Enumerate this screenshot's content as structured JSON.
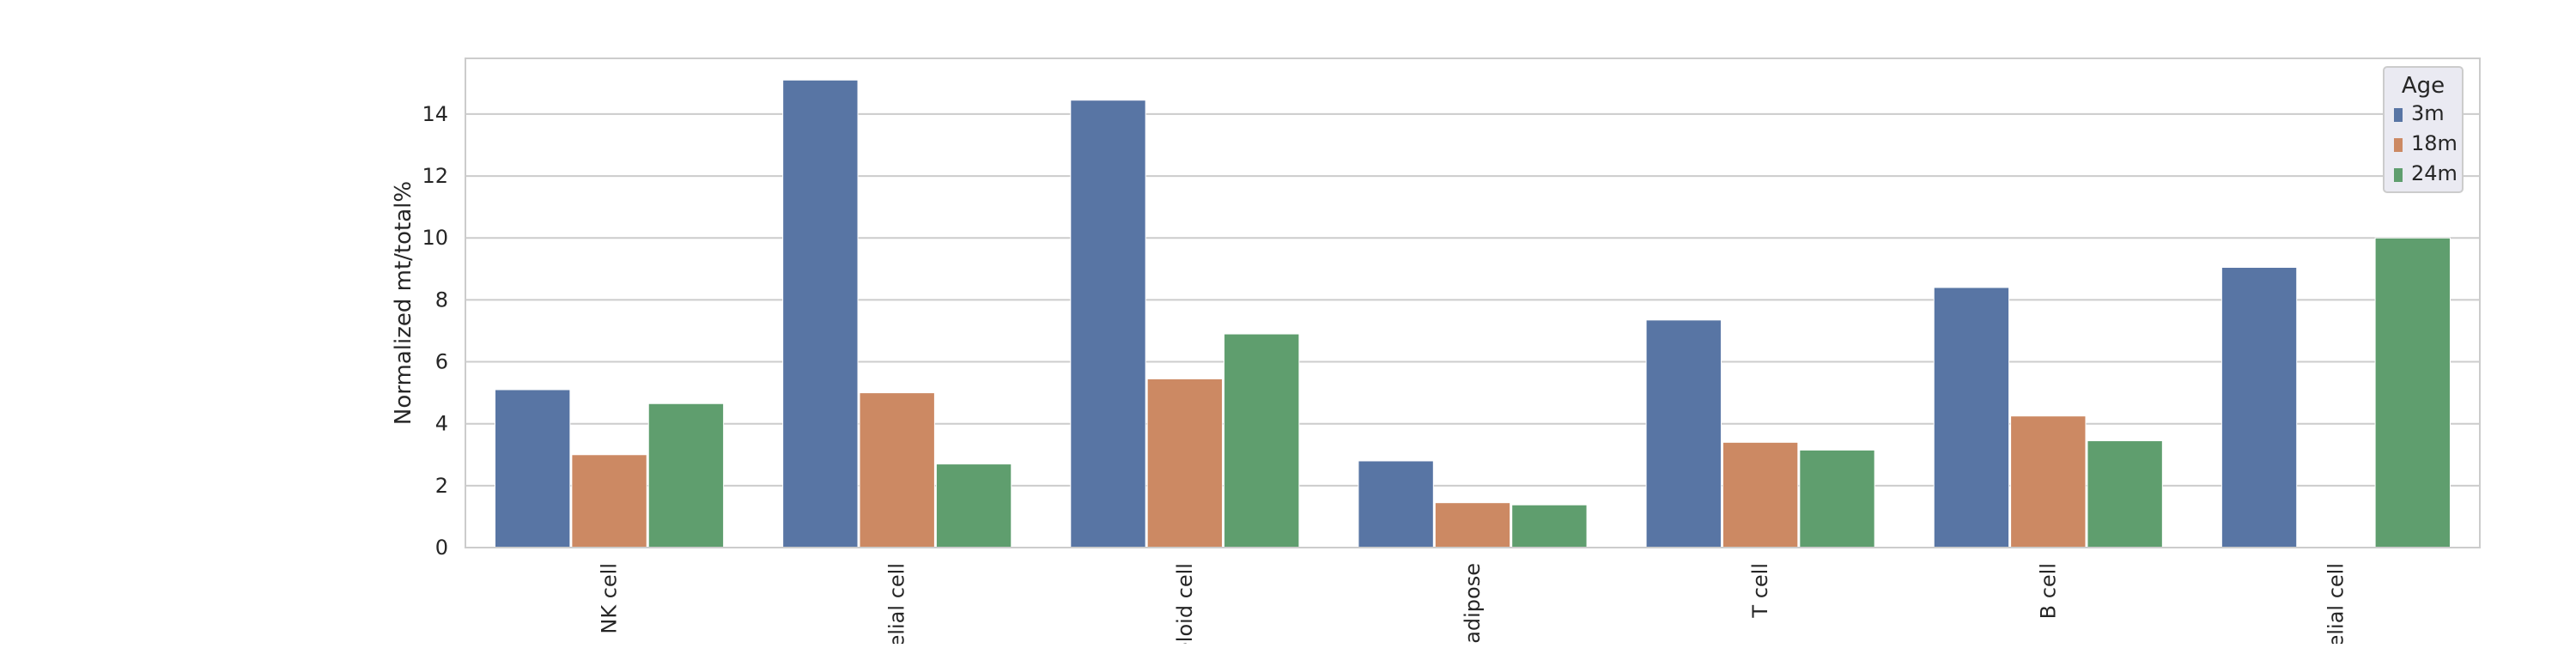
{
  "chart_data": {
    "type": "bar",
    "title": "",
    "xlabel": "",
    "ylabel": "Normalized mt/total%",
    "ylim": [
      0,
      15.8
    ],
    "yticks": [
      0,
      2,
      4,
      6,
      8,
      10,
      12,
      14
    ],
    "grid": true,
    "categories": [
      "NK cell",
      "elial cell",
      "eloid cell",
      "adipose",
      "T cell",
      "B cell",
      "elial cell"
    ],
    "legend": {
      "title": "Age",
      "placement": "top-right"
    },
    "series": [
      {
        "name": "3m",
        "color": "#5875a4",
        "values": [
          5.1,
          15.1,
          14.45,
          2.8,
          7.35,
          8.4,
          9.05
        ]
      },
      {
        "name": "18m",
        "color": "#cc8963",
        "values": [
          3.0,
          5.0,
          5.45,
          1.45,
          3.4,
          4.25,
          0
        ]
      },
      {
        "name": "24m",
        "color": "#5f9e6e",
        "values": [
          4.65,
          2.7,
          6.9,
          1.38,
          3.15,
          3.45,
          10.0
        ]
      }
    ]
  }
}
